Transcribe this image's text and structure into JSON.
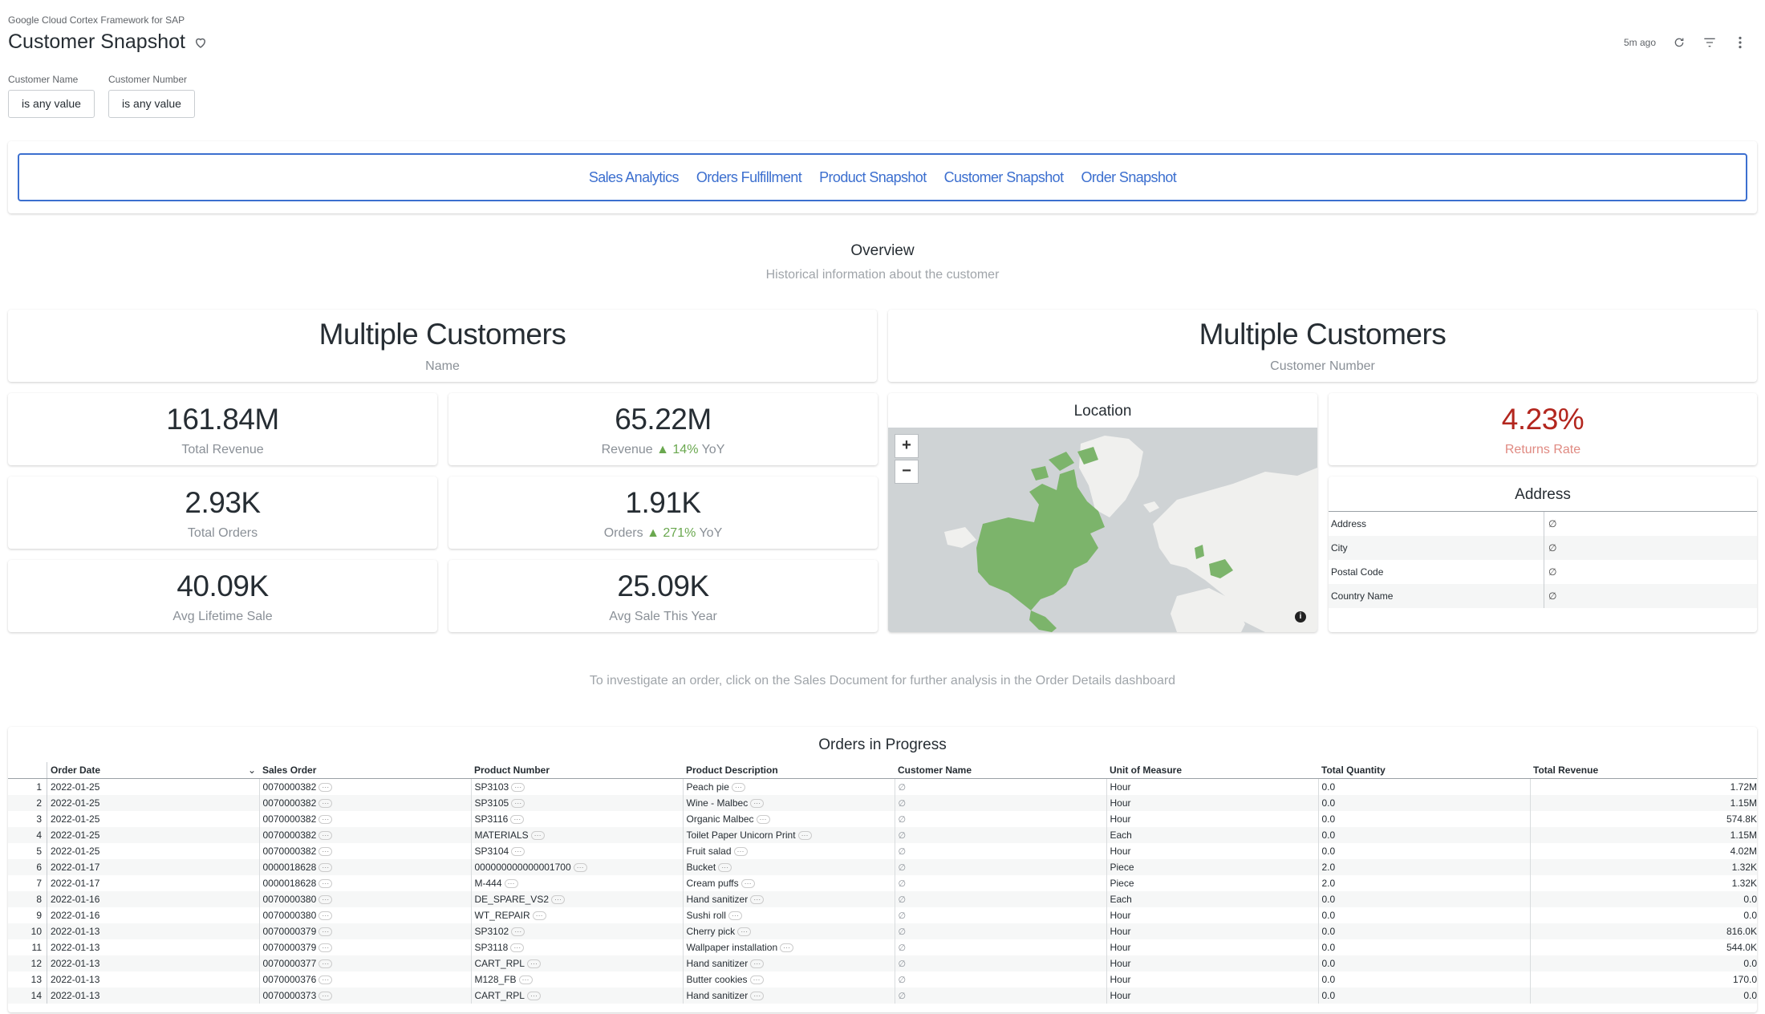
{
  "header": {
    "app_name": "Google Cloud Cortex Framework for SAP",
    "title": "Customer Snapshot",
    "last_refresh": "5m ago"
  },
  "filters": [
    {
      "label": "Customer Name",
      "value": "is any value"
    },
    {
      "label": "Customer Number",
      "value": "is any value"
    }
  ],
  "nav": {
    "links": [
      "Sales Analytics",
      "Orders Fulfillment",
      "Product Snapshot",
      "Customer Snapshot",
      "Order Snapshot"
    ]
  },
  "overview": {
    "title": "Overview",
    "subtitle": "Historical information about the customer"
  },
  "customer_name": {
    "value": "Multiple Customers",
    "label": "Name"
  },
  "customer_number": {
    "value": "Multiple Customers",
    "label": "Customer Number"
  },
  "kpis": {
    "total_revenue": {
      "value": "161.84M",
      "label": "Total Revenue"
    },
    "revenue_yoy": {
      "value": "65.22M",
      "label": "Revenue",
      "change": "14%",
      "suffix": "YoY"
    },
    "total_orders": {
      "value": "2.93K",
      "label": "Total Orders"
    },
    "orders_yoy": {
      "value": "1.91K",
      "label": "Orders",
      "change": "271%",
      "suffix": "YoY"
    },
    "avg_lifetime_sale": {
      "value": "40.09K",
      "label": "Avg Lifetime Sale"
    },
    "avg_sale_year": {
      "value": "25.09K",
      "label": "Avg Sale This Year"
    },
    "returns_rate": {
      "value": "4.23%",
      "label": "Returns Rate"
    }
  },
  "location": {
    "title": "Location",
    "zoom_in": "+",
    "zoom_out": "−",
    "info_icon": "info-icon"
  },
  "address": {
    "title": "Address",
    "rows": [
      {
        "key": "Address",
        "value": "∅"
      },
      {
        "key": "City",
        "value": "∅"
      },
      {
        "key": "Postal Code",
        "value": "∅"
      },
      {
        "key": "Country Name",
        "value": "∅"
      }
    ]
  },
  "hint": "To investigate an order, click on the Sales Document for further analysis in the Order Details dashboard",
  "orders": {
    "title": "Orders in Progress",
    "columns": [
      "Order Date",
      "Sales Order",
      "Product Number",
      "Product Description",
      "Customer Name",
      "Unit of Measure",
      "Total Quantity",
      "Total Revenue"
    ],
    "rows": [
      {
        "idx": "1",
        "date": "2022-01-25",
        "order": "0070000382",
        "product": "SP3103",
        "desc": "Peach pie",
        "customer": "∅",
        "uom": "Hour",
        "qty": "0.0",
        "rev": "1.72M"
      },
      {
        "idx": "2",
        "date": "2022-01-25",
        "order": "0070000382",
        "product": "SP3105",
        "desc": "Wine - Malbec",
        "customer": "∅",
        "uom": "Hour",
        "qty": "0.0",
        "rev": "1.15M"
      },
      {
        "idx": "3",
        "date": "2022-01-25",
        "order": "0070000382",
        "product": "SP3116",
        "desc": "Organic Malbec",
        "customer": "∅",
        "uom": "Hour",
        "qty": "0.0",
        "rev": "574.8K"
      },
      {
        "idx": "4",
        "date": "2022-01-25",
        "order": "0070000382",
        "product": "MATERIALS",
        "desc": "Toilet Paper Unicorn Print",
        "customer": "∅",
        "uom": "Each",
        "qty": "0.0",
        "rev": "1.15M"
      },
      {
        "idx": "5",
        "date": "2022-01-25",
        "order": "0070000382",
        "product": "SP3104",
        "desc": "Fruit salad",
        "customer": "∅",
        "uom": "Hour",
        "qty": "0.0",
        "rev": "4.02M"
      },
      {
        "idx": "6",
        "date": "2022-01-17",
        "order": "0000018628",
        "product": "000000000000001700",
        "desc": "Bucket",
        "customer": "∅",
        "uom": "Piece",
        "qty": "2.0",
        "rev": "1.32K"
      },
      {
        "idx": "7",
        "date": "2022-01-17",
        "order": "0000018628",
        "product": "M-444",
        "desc": "Cream puffs",
        "customer": "∅",
        "uom": "Piece",
        "qty": "2.0",
        "rev": "1.32K"
      },
      {
        "idx": "8",
        "date": "2022-01-16",
        "order": "0070000380",
        "product": "DE_SPARE_VS2",
        "desc": "Hand sanitizer",
        "customer": "∅",
        "uom": "Each",
        "qty": "0.0",
        "rev": "0.0"
      },
      {
        "idx": "9",
        "date": "2022-01-16",
        "order": "0070000380",
        "product": "WT_REPAIR",
        "desc": "Sushi roll",
        "customer": "∅",
        "uom": "Hour",
        "qty": "0.0",
        "rev": "0.0"
      },
      {
        "idx": "10",
        "date": "2022-01-13",
        "order": "0070000379",
        "product": "SP3102",
        "desc": "Cherry pick",
        "customer": "∅",
        "uom": "Hour",
        "qty": "0.0",
        "rev": "816.0K"
      },
      {
        "idx": "11",
        "date": "2022-01-13",
        "order": "0070000379",
        "product": "SP3118",
        "desc": "Wallpaper installation",
        "customer": "∅",
        "uom": "Hour",
        "qty": "0.0",
        "rev": "544.0K"
      },
      {
        "idx": "12",
        "date": "2022-01-13",
        "order": "0070000377",
        "product": "CART_RPL",
        "desc": "Hand sanitizer",
        "customer": "∅",
        "uom": "Hour",
        "qty": "0.0",
        "rev": "0.0"
      },
      {
        "idx": "13",
        "date": "2022-01-13",
        "order": "0070000376",
        "product": "M128_FB",
        "desc": "Butter cookies",
        "customer": "∅",
        "uom": "Hour",
        "qty": "0.0",
        "rev": "170.0"
      },
      {
        "idx": "14",
        "date": "2022-01-13",
        "order": "0070000373",
        "product": "CART_RPL",
        "desc": "Hand sanitizer",
        "customer": "∅",
        "uom": "Hour",
        "qty": "0.0",
        "rev": "0.0"
      }
    ]
  }
}
